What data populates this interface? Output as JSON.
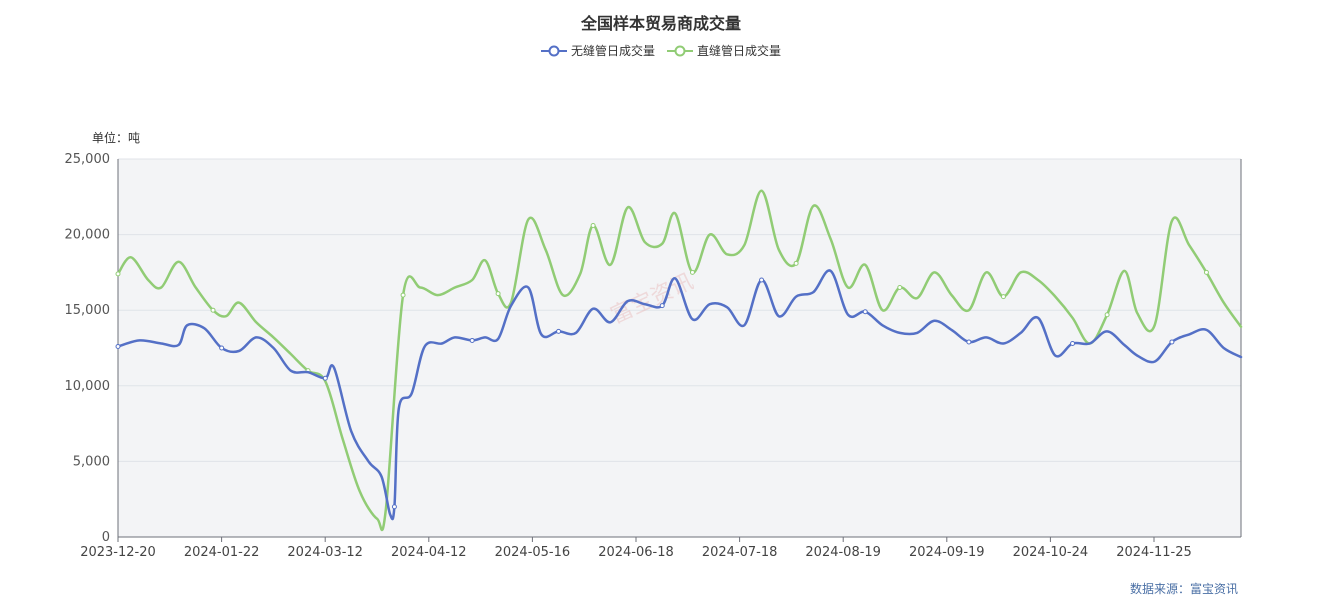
{
  "chart_data": {
    "type": "line",
    "title": "全国样本贸易商成交量",
    "unit_label": "单位：吨",
    "source_label": "数据来源：富宝资讯",
    "watermark": "富宝资讯",
    "ylim": [
      0,
      25000
    ],
    "y_ticks": [
      "0",
      "5,000",
      "10,000",
      "15,000",
      "20,000",
      "25,000"
    ],
    "x_tick_labels": [
      "2023-12-20",
      "2024-01-22",
      "2024-03-12",
      "2024-04-12",
      "2024-05-16",
      "2024-06-18",
      "2024-07-18",
      "2024-08-19",
      "2024-09-19",
      "2024-10-24",
      "2024-11-25"
    ],
    "x_index_range": [
      0,
      260
    ],
    "grid": true,
    "legend_position": "top-center",
    "series": [
      {
        "name": "无缝管日成交量",
        "color": "#5470c6",
        "points": [
          [
            0,
            12600
          ],
          [
            5,
            13000
          ],
          [
            10,
            12800
          ],
          [
            14,
            12700
          ],
          [
            16,
            14000
          ],
          [
            20,
            13800
          ],
          [
            24,
            12500
          ],
          [
            28,
            12300
          ],
          [
            32,
            13200
          ],
          [
            36,
            12500
          ],
          [
            40,
            11000
          ],
          [
            44,
            10900
          ],
          [
            48,
            10500
          ],
          [
            50,
            11200
          ],
          [
            54,
            7000
          ],
          [
            58,
            5000
          ],
          [
            61,
            4000
          ],
          [
            63,
            1500
          ],
          [
            64,
            2000
          ],
          [
            65,
            8500
          ],
          [
            68,
            9500
          ],
          [
            71,
            12600
          ],
          [
            75,
            12800
          ],
          [
            78,
            13200
          ],
          [
            82,
            13000
          ],
          [
            85,
            13200
          ],
          [
            88,
            13100
          ],
          [
            91,
            15300
          ],
          [
            95,
            16500
          ],
          [
            98,
            13400
          ],
          [
            102,
            13600
          ],
          [
            106,
            13500
          ],
          [
            110,
            15100
          ],
          [
            114,
            14200
          ],
          [
            118,
            15600
          ],
          [
            122,
            15400
          ],
          [
            126,
            15300
          ],
          [
            129,
            17100
          ],
          [
            133,
            14400
          ],
          [
            137,
            15400
          ],
          [
            141,
            15200
          ],
          [
            145,
            14000
          ],
          [
            149,
            17000
          ],
          [
            153,
            14600
          ],
          [
            157,
            15900
          ],
          [
            161,
            16200
          ],
          [
            165,
            17600
          ],
          [
            169,
            14700
          ],
          [
            173,
            14900
          ],
          [
            177,
            14000
          ],
          [
            181,
            13500
          ],
          [
            185,
            13500
          ],
          [
            189,
            14300
          ],
          [
            193,
            13700
          ],
          [
            197,
            12900
          ],
          [
            201,
            13200
          ],
          [
            205,
            12800
          ],
          [
            209,
            13500
          ],
          [
            213,
            14500
          ],
          [
            217,
            12000
          ],
          [
            221,
            12800
          ],
          [
            225,
            12800
          ],
          [
            229,
            13600
          ],
          [
            233,
            12700
          ],
          [
            236,
            12000
          ],
          [
            240,
            11600
          ],
          [
            244,
            12900
          ],
          [
            248,
            13400
          ],
          [
            252,
            13700
          ],
          [
            256,
            12500
          ],
          [
            260,
            11900
          ]
        ]
      },
      {
        "name": "直缝管日成交量",
        "color": "#91cc75",
        "points": [
          [
            0,
            17400
          ],
          [
            3,
            18500
          ],
          [
            7,
            17000
          ],
          [
            10,
            16500
          ],
          [
            14,
            18200
          ],
          [
            18,
            16500
          ],
          [
            22,
            15000
          ],
          [
            25,
            14600
          ],
          [
            28,
            15500
          ],
          [
            32,
            14200
          ],
          [
            36,
            13200
          ],
          [
            40,
            12100
          ],
          [
            44,
            11000
          ],
          [
            48,
            10300
          ],
          [
            52,
            6500
          ],
          [
            56,
            3000
          ],
          [
            60,
            1200
          ],
          [
            62,
            1800
          ],
          [
            66,
            16000
          ],
          [
            70,
            16500
          ],
          [
            74,
            16000
          ],
          [
            78,
            16500
          ],
          [
            82,
            17000
          ],
          [
            85,
            18300
          ],
          [
            88,
            16100
          ],
          [
            91,
            15500
          ],
          [
            95,
            21000
          ],
          [
            99,
            19000
          ],
          [
            103,
            16000
          ],
          [
            107,
            17400
          ],
          [
            110,
            20600
          ],
          [
            114,
            18000
          ],
          [
            118,
            21800
          ],
          [
            122,
            19500
          ],
          [
            126,
            19400
          ],
          [
            129,
            21400
          ],
          [
            133,
            17500
          ],
          [
            137,
            20000
          ],
          [
            141,
            18700
          ],
          [
            145,
            19300
          ],
          [
            149,
            22900
          ],
          [
            153,
            19000
          ],
          [
            157,
            18100
          ],
          [
            161,
            21900
          ],
          [
            165,
            19700
          ],
          [
            169,
            16500
          ],
          [
            173,
            18000
          ],
          [
            177,
            15000
          ],
          [
            181,
            16500
          ],
          [
            185,
            15800
          ],
          [
            189,
            17500
          ],
          [
            193,
            16000
          ],
          [
            197,
            15000
          ],
          [
            201,
            17500
          ],
          [
            205,
            15900
          ],
          [
            209,
            17500
          ],
          [
            213,
            17000
          ],
          [
            217,
            15900
          ],
          [
            221,
            14500
          ],
          [
            225,
            12800
          ],
          [
            229,
            14700
          ],
          [
            233,
            17600
          ],
          [
            236,
            14800
          ],
          [
            240,
            14000
          ],
          [
            244,
            20900
          ],
          [
            248,
            19300
          ],
          [
            252,
            17500
          ],
          [
            256,
            15500
          ],
          [
            260,
            13900
          ]
        ]
      }
    ]
  }
}
